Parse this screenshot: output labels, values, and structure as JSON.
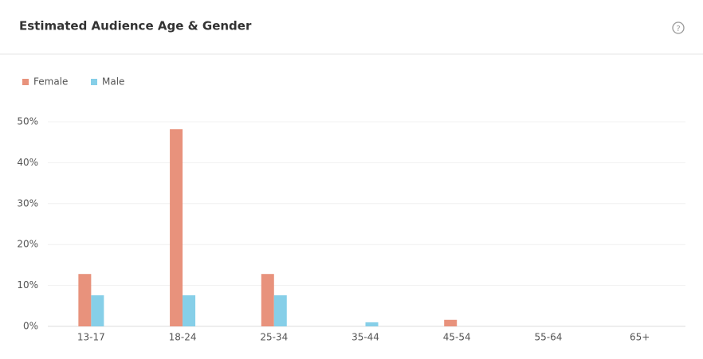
{
  "chart_data": {
    "type": "bar",
    "title": "Estimated Audience Age & Gender",
    "categories": [
      "13-17",
      "18-24",
      "25-34",
      "35-44",
      "45-54",
      "55-64",
      "65+"
    ],
    "series": [
      {
        "name": "Female",
        "color": "#e8927c",
        "values": [
          12.8,
          48.2,
          12.8,
          0,
          1.6,
          0,
          0
        ]
      },
      {
        "name": "Male",
        "color": "#86cfe8",
        "values": [
          7.6,
          7.6,
          7.6,
          1.0,
          0,
          0,
          0
        ]
      }
    ],
    "ylim": [
      0,
      50
    ],
    "yticks": [
      {
        "value": 0,
        "label": "0%"
      },
      {
        "value": 10,
        "label": "10%"
      },
      {
        "value": 20,
        "label": "20%"
      },
      {
        "value": 30,
        "label": "30%"
      },
      {
        "value": 40,
        "label": "40%"
      },
      {
        "value": 50,
        "label": "50%"
      }
    ],
    "grid": true
  }
}
